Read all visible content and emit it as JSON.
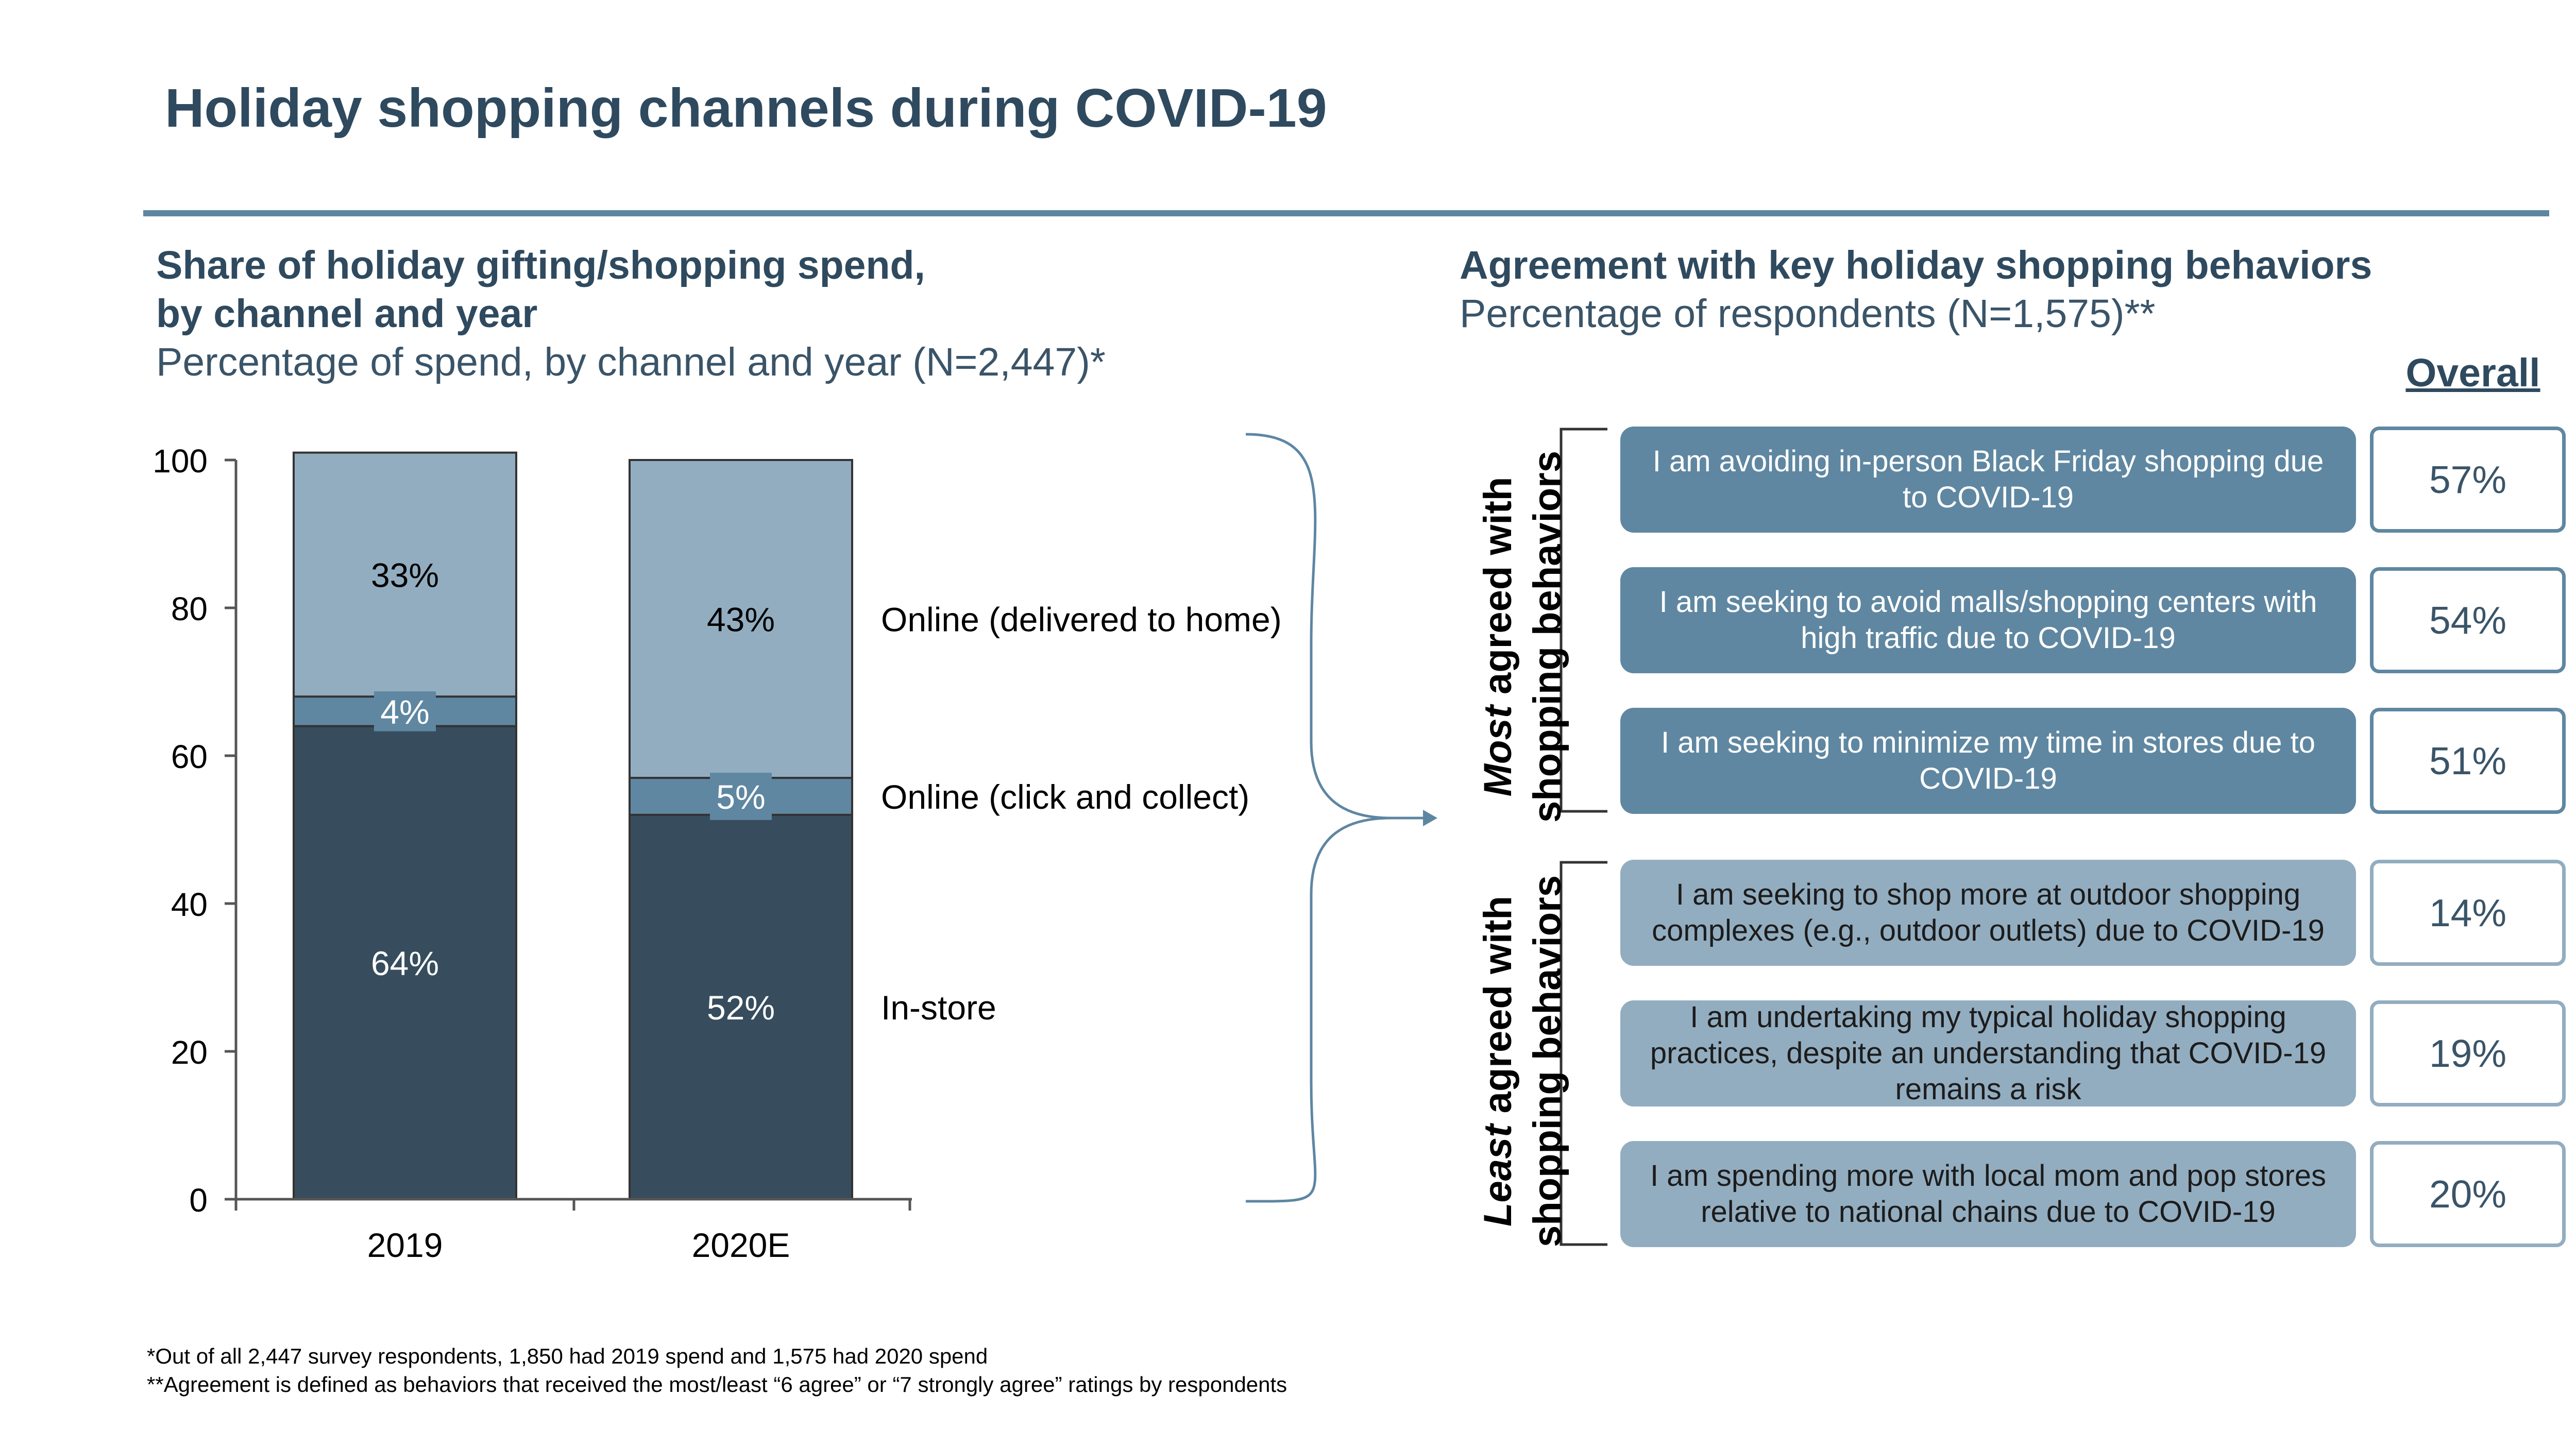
{
  "title": "Holiday shopping channels during COVID-19",
  "left_panel": {
    "title_line1": "Share of holiday gifting/shopping spend,",
    "title_line2": "by channel and year",
    "subtitle": "Percentage of spend, by channel and year (N=2,447)*"
  },
  "right_panel": {
    "title": "Agreement with key holiday shopping behaviors",
    "subtitle": "Percentage of respondents (N=1,575)**",
    "overall_label": "Overall",
    "most_label_emph": "Most",
    "most_label_rest": " agreed with",
    "most_label_line2": "shopping behaviors",
    "least_label_emph": "Least",
    "least_label_rest": " agreed with",
    "least_label_line2": "shopping behaviors",
    "behaviors": [
      {
        "text": "I am avoiding in-person Black Friday shopping due to COVID-19",
        "overall": "57%",
        "group": "most"
      },
      {
        "text": "I am seeking to avoid malls/shopping centers with high traffic due to COVID-19",
        "overall": "54%",
        "group": "most"
      },
      {
        "text": "I am seeking to minimize my time in stores due to COVID-19",
        "overall": "51%",
        "group": "most"
      },
      {
        "text": "I am seeking to shop more at outdoor shopping complexes (e.g., outdoor outlets) due to COVID-19",
        "overall": "14%",
        "group": "least"
      },
      {
        "text": "I am undertaking my typical holiday shopping practices, despite an understanding that COVID-19 remains a risk",
        "overall": "19%",
        "group": "least"
      },
      {
        "text": "I am spending more with local mom and pop stores relative to national chains due to COVID-19",
        "overall": "20%",
        "group": "least"
      }
    ]
  },
  "chart_data": {
    "type": "bar",
    "stacked": true,
    "categories": [
      "2019",
      "2020E"
    ],
    "series": [
      {
        "name": "In-store",
        "values": [
          64,
          52
        ],
        "labels": [
          "64%",
          "52%"
        ],
        "color": "#374d5d"
      },
      {
        "name": "Online (click and collect)",
        "values": [
          4,
          5
        ],
        "labels": [
          "4%",
          "5%"
        ],
        "color": "#5f87a1"
      },
      {
        "name": "Online (delivered to home)",
        "values": [
          33,
          43
        ],
        "labels": [
          "33%",
          "43%"
        ],
        "color": "#93adc0"
      }
    ],
    "ylim": [
      0,
      100
    ],
    "yticks": [
      0,
      20,
      40,
      60,
      80,
      100
    ],
    "xlabel": "",
    "ylabel": "",
    "grid": false,
    "legend": "right-of-bars"
  },
  "footnotes": [
    "*Out of all 2,447 survey respondents, 1,850 had 2019 spend and 1,575 had 2020 spend",
    "**Agreement is defined as behaviors that received the most/least “6 agree” or “7 strongly agree” ratings by respondents"
  ]
}
